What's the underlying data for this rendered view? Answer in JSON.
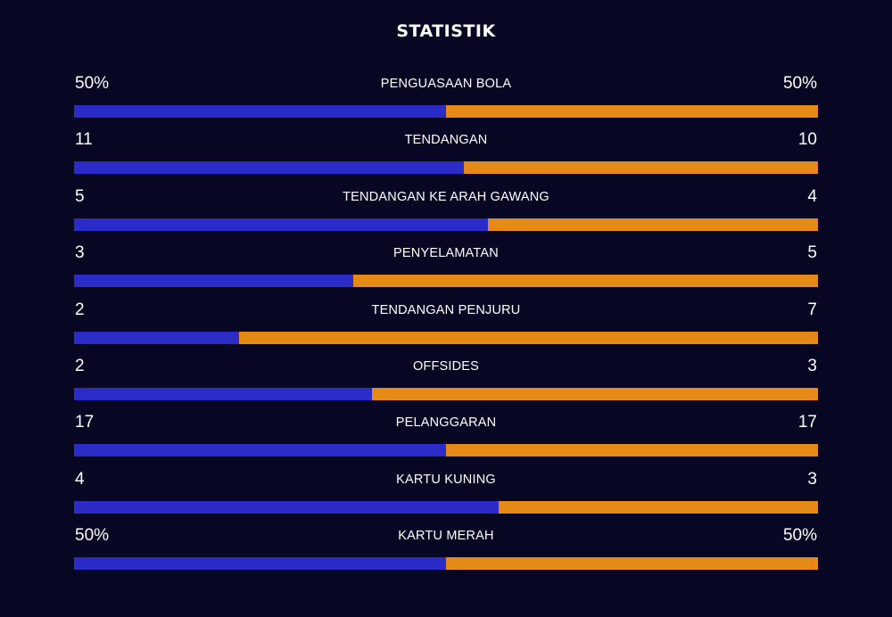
{
  "title": "STATISTIK",
  "colors": {
    "background": "#070724",
    "home": "#2b2bc8",
    "away": "#e58a17"
  },
  "stats": [
    {
      "label": "PENGUASAAN BOLA",
      "home_display": "50%",
      "away_display": "50%",
      "home_share": 0.5
    },
    {
      "label": "TENDANGAN",
      "home_display": "11",
      "away_display": "10",
      "home_share": 0.524
    },
    {
      "label": "TENDANGAN KE ARAH GAWANG",
      "home_display": "5",
      "away_display": "4",
      "home_share": 0.556
    },
    {
      "label": "PENYELAMATAN",
      "home_display": "3",
      "away_display": "5",
      "home_share": 0.375
    },
    {
      "label": "TENDANGAN PENJURU",
      "home_display": "2",
      "away_display": "7",
      "home_share": 0.222
    },
    {
      "label": "OFFSIDES",
      "home_display": "2",
      "away_display": "3",
      "home_share": 0.4
    },
    {
      "label": "PELANGGARAN",
      "home_display": "17",
      "away_display": "17",
      "home_share": 0.5
    },
    {
      "label": "KARTU KUNING",
      "home_display": "4",
      "away_display": "3",
      "home_share": 0.571
    },
    {
      "label": "KARTU MERAH",
      "home_display": "50%",
      "away_display": "50%",
      "home_share": 0.5
    }
  ]
}
